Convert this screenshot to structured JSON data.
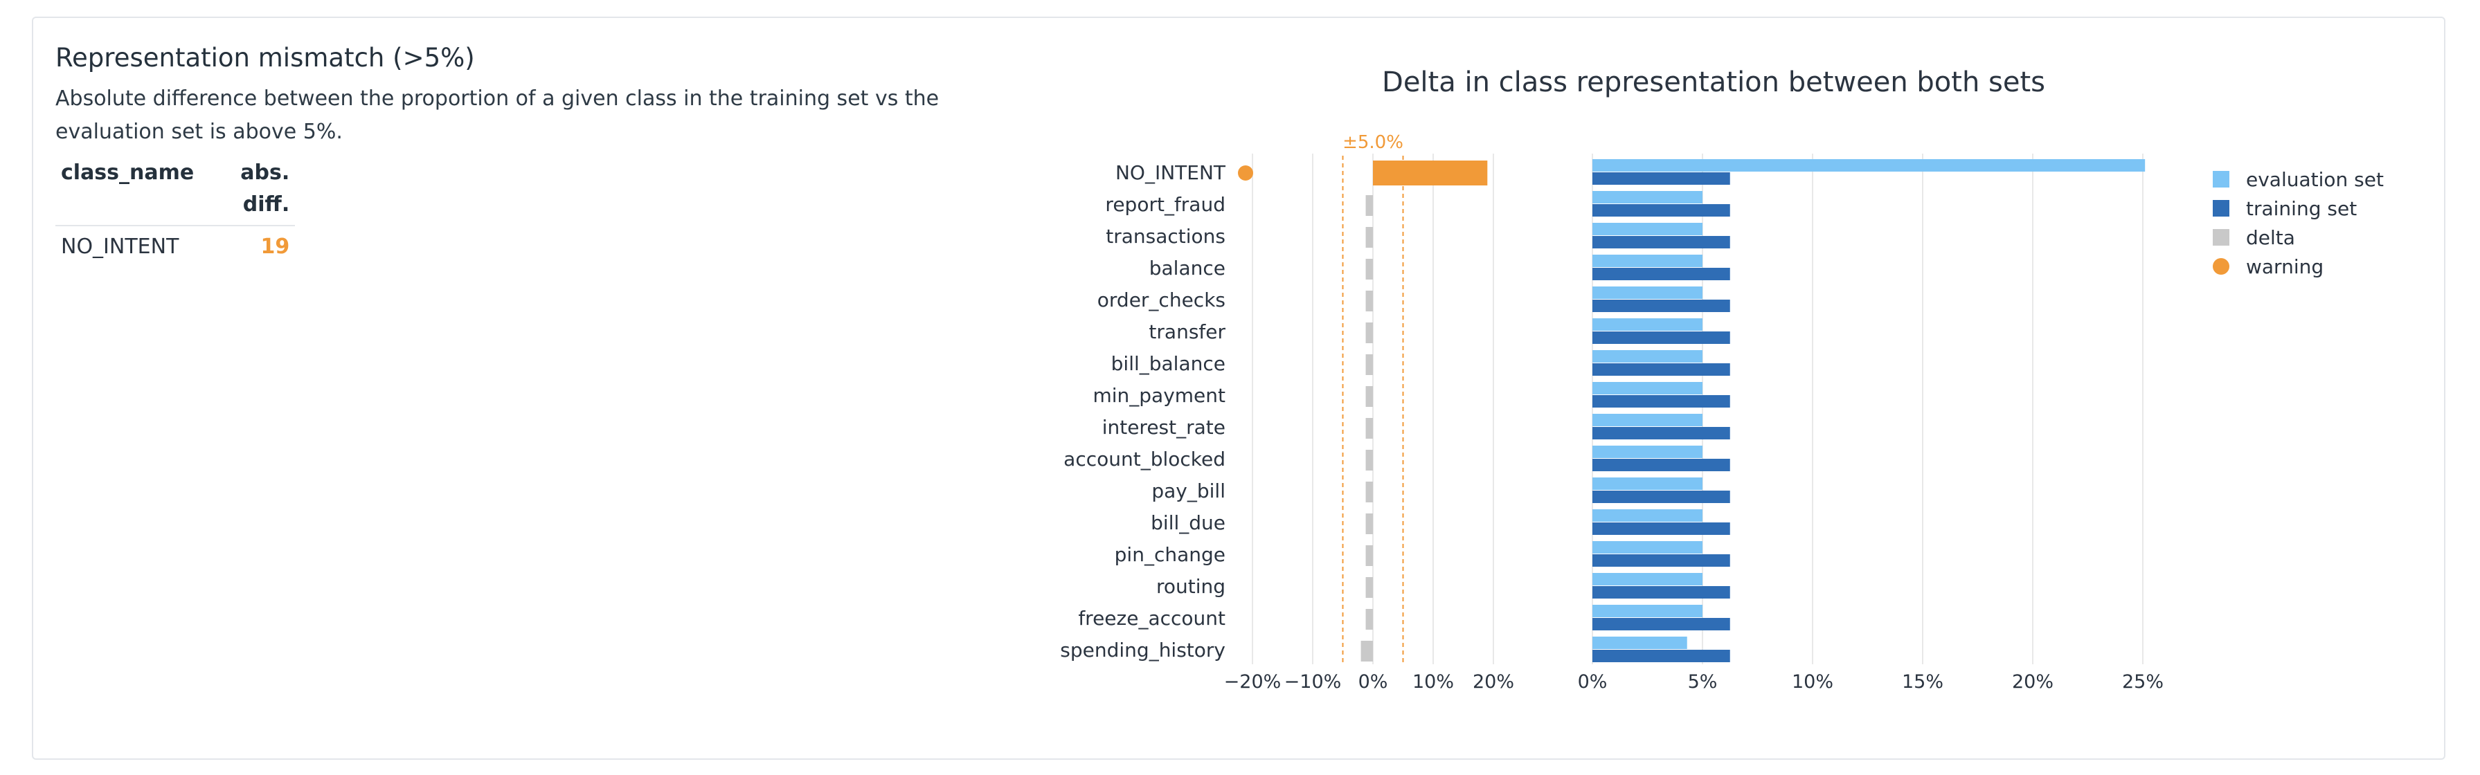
{
  "panel": {
    "title": "Representation mismatch (>5%)",
    "description": "Absolute difference between the proportion of a given class in the training set vs the evaluation set is above 5%.",
    "table": {
      "headers": [
        "class_name",
        "abs. diff."
      ],
      "rows": [
        {
          "class_name": "NO_INTENT",
          "abs_diff": "19"
        }
      ]
    }
  },
  "colors": {
    "evaluation": "#7cc4f5",
    "training": "#2f6db5",
    "delta": "#c9c9c9",
    "warning": "#f19a38",
    "grid": "#e8e8e8"
  },
  "chart_data": {
    "type": "bar",
    "title": "Delta in class representation between both sets",
    "threshold_label": "±5.0%",
    "threshold": 5,
    "categories": [
      "NO_INTENT",
      "report_fraud",
      "transactions",
      "balance",
      "order_checks",
      "transfer",
      "bill_balance",
      "min_payment",
      "interest_rate",
      "account_blocked",
      "pay_bill",
      "bill_due",
      "pin_change",
      "routing",
      "freeze_account",
      "spending_history"
    ],
    "warnings": [
      "NO_INTENT"
    ],
    "delta_panel": {
      "ticks": [
        -20,
        -10,
        0,
        10,
        20
      ],
      "tick_labels": [
        "−20%",
        "−10%",
        "0%",
        "10%",
        "20%"
      ],
      "xlim": [
        -24,
        24
      ],
      "values": [
        19,
        -1.2,
        -1.2,
        -1.2,
        -1.2,
        -1.2,
        -1.2,
        -1.2,
        -1.2,
        -1.2,
        -1.2,
        -1.2,
        -1.2,
        -1.2,
        -1.2,
        -2.0
      ]
    },
    "share_panel": {
      "ticks": [
        0,
        5,
        10,
        15,
        20,
        25
      ],
      "tick_labels": [
        "0%",
        "5%",
        "10%",
        "15%",
        "20%",
        "25%"
      ],
      "xlim": [
        0,
        26
      ],
      "series": [
        {
          "name": "evaluation set",
          "values": [
            25.1,
            5.0,
            5.0,
            5.0,
            5.0,
            5.0,
            5.0,
            5.0,
            5.0,
            5.0,
            5.0,
            5.0,
            5.0,
            5.0,
            5.0,
            4.3
          ]
        },
        {
          "name": "training set",
          "values": [
            6.25,
            6.25,
            6.25,
            6.25,
            6.25,
            6.25,
            6.25,
            6.25,
            6.25,
            6.25,
            6.25,
            6.25,
            6.25,
            6.25,
            6.25,
            6.25
          ]
        }
      ]
    },
    "legend": {
      "position": "right",
      "items": [
        "evaluation set",
        "training set",
        "delta",
        "warning"
      ]
    }
  }
}
